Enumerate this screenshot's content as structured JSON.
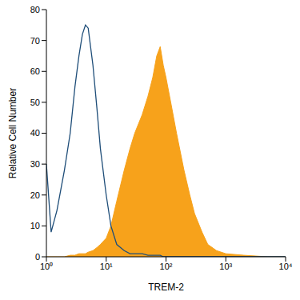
{
  "chart_data": {
    "type": "line",
    "x_label": "TREM-2",
    "y_label": "Relative Cell Number",
    "log": "x",
    "grid": false,
    "x": [
      1,
      1.2,
      1.5,
      2,
      2.5,
      3,
      3.5,
      4,
      4.5,
      5,
      6,
      7,
      8,
      10,
      12,
      15,
      20,
      25,
      30,
      40,
      50,
      60,
      70,
      80,
      90,
      100,
      120,
      150,
      200,
      250,
      300,
      400,
      500,
      700,
      1000,
      2000,
      5000,
      10000
    ],
    "series": [
      {
        "type": "area",
        "color": "#f7a21b",
        "values": [
          0,
          0,
          0,
          0,
          0.5,
          0.5,
          1,
          1,
          1,
          1.5,
          2,
          3,
          4,
          6,
          10,
          18,
          28,
          35,
          40,
          46,
          52,
          58,
          65,
          68,
          62,
          58,
          50,
          40,
          28,
          20,
          14,
          8,
          4,
          2,
          1,
          0.5,
          0,
          0
        ]
      },
      {
        "type": "line",
        "color": "#1f4e79",
        "values": [
          30,
          8,
          15,
          28,
          40,
          55,
          65,
          72,
          75,
          74,
          62,
          48,
          35,
          20,
          10,
          4,
          2,
          1,
          1,
          1,
          0.5,
          0.5,
          0.5,
          0.5,
          0,
          0,
          0,
          0,
          0,
          0,
          0,
          0,
          0,
          0,
          0,
          0,
          0,
          0
        ]
      }
    ],
    "xlim": [
      1,
      10000
    ],
    "xticks": [
      {
        "value": 1,
        "label": "10⁰"
      },
      {
        "value": 10,
        "label": "10¹"
      },
      {
        "value": 100,
        "label": "10²"
      },
      {
        "value": 1000,
        "label": "10³"
      },
      {
        "value": 10000,
        "label": "10⁴"
      }
    ],
    "ylim": [
      0,
      80
    ],
    "yticks": [
      0,
      10,
      20,
      30,
      40,
      50,
      60,
      70,
      80
    ]
  }
}
